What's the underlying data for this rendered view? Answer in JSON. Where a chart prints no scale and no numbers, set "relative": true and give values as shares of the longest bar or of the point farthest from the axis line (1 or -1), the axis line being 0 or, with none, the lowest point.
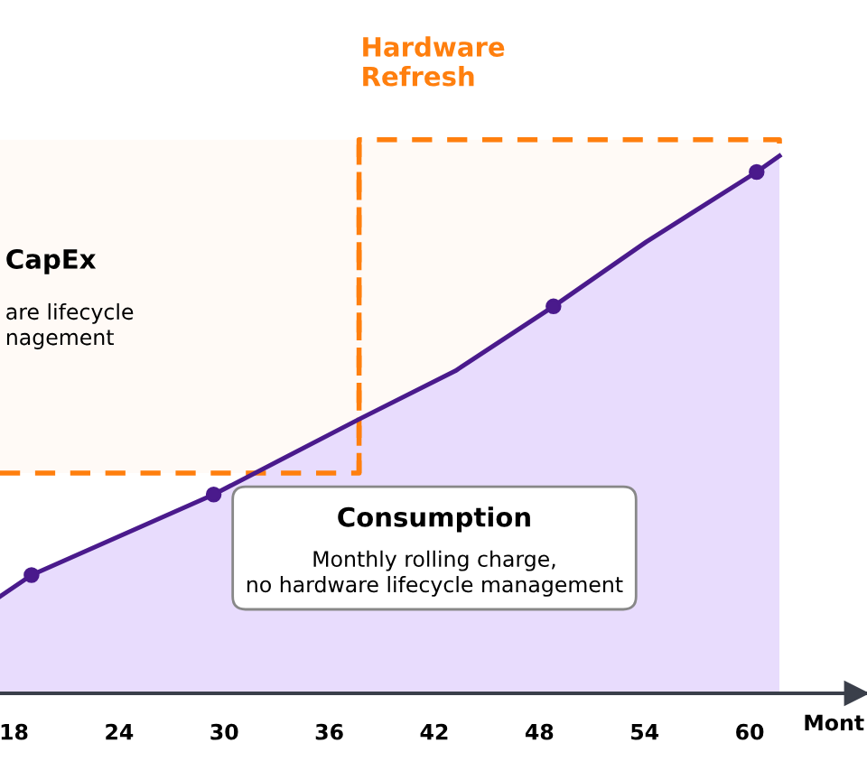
{
  "chart_data": {
    "type": "area",
    "relative": true,
    "xlabel": "Mont",
    "xlim": [
      17.2,
      66.7
    ],
    "xticks": [
      18,
      24,
      30,
      36,
      42,
      48,
      54,
      60
    ],
    "series": [
      {
        "color": "#4a1a8c",
        "x": [
          17.2,
          19,
          29.4,
          37.7,
          43.2,
          48.8,
          54.1,
          60.4,
          61.7
        ],
        "values": [
          0.18,
          0.22,
          0.37,
          0.51,
          0.6,
          0.72,
          0.84,
          0.97,
          1.0
        ]
      },
      {
        "type": "scatter",
        "color": "#4a1a8c",
        "marker": "circle",
        "x": [
          19,
          29.4,
          48.8,
          60.4
        ],
        "values": [
          0.22,
          0.37,
          0.72,
          0.97
        ]
      }
    ],
    "bands": [
      {
        "axis": "x",
        "from": 17.2,
        "to": 37.7,
        "color": "#ff7f0e"
      },
      {
        "axis": "x",
        "from": 37.7,
        "to": 61.7,
        "label": "Hardware\nRefresh",
        "color": "#ff7f0e"
      }
    ],
    "annotations": [
      "CapEx\nare lifecycle\nnagement",
      "Consumption\nMonthly rolling charge,\nno hardware lifecycle management"
    ]
  }
}
